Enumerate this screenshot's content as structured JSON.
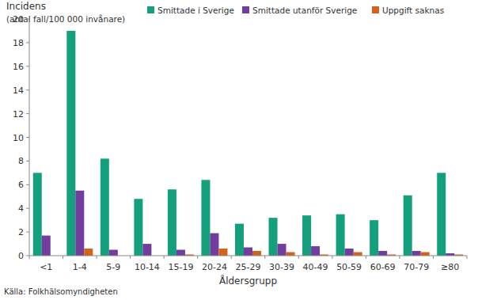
{
  "chart_data": {
    "type": "bar",
    "title": "Incidens",
    "subtitle": "(antal fall/100 000 invånare)",
    "x_label": "Åldersgrupp",
    "source": "Källa: Folkhälsomyndigheten",
    "categories": [
      "<1",
      "1-4",
      "5-9",
      "10-14",
      "15-19",
      "20-24",
      "25-29",
      "30-39",
      "40-49",
      "50-59",
      "60-69",
      "70-79",
      "≥80"
    ],
    "series": [
      {
        "name": "Smittade i Sverige",
        "color": "#14a07c",
        "values": [
          7.0,
          19.0,
          8.2,
          4.8,
          5.6,
          6.4,
          2.7,
          3.2,
          3.4,
          3.5,
          3.0,
          5.1,
          7.0
        ]
      },
      {
        "name": "Smittade utanför Sverige",
        "color": "#733d9f",
        "values": [
          1.7,
          5.5,
          0.5,
          1.0,
          0.5,
          1.9,
          0.7,
          1.0,
          0.8,
          0.6,
          0.4,
          0.4,
          0.2
        ]
      },
      {
        "name": "Uppgift saknas",
        "color": "#d4621c",
        "values": [
          0,
          0.6,
          0,
          0,
          0.1,
          0.6,
          0.4,
          0.3,
          0.1,
          0.3,
          0.1,
          0.3,
          0.1
        ]
      }
    ],
    "ylim": [
      0,
      20
    ],
    "yticks": [
      0,
      2,
      4,
      6,
      8,
      10,
      12,
      14,
      16,
      18,
      20
    ],
    "grid": false,
    "legend": "top"
  }
}
